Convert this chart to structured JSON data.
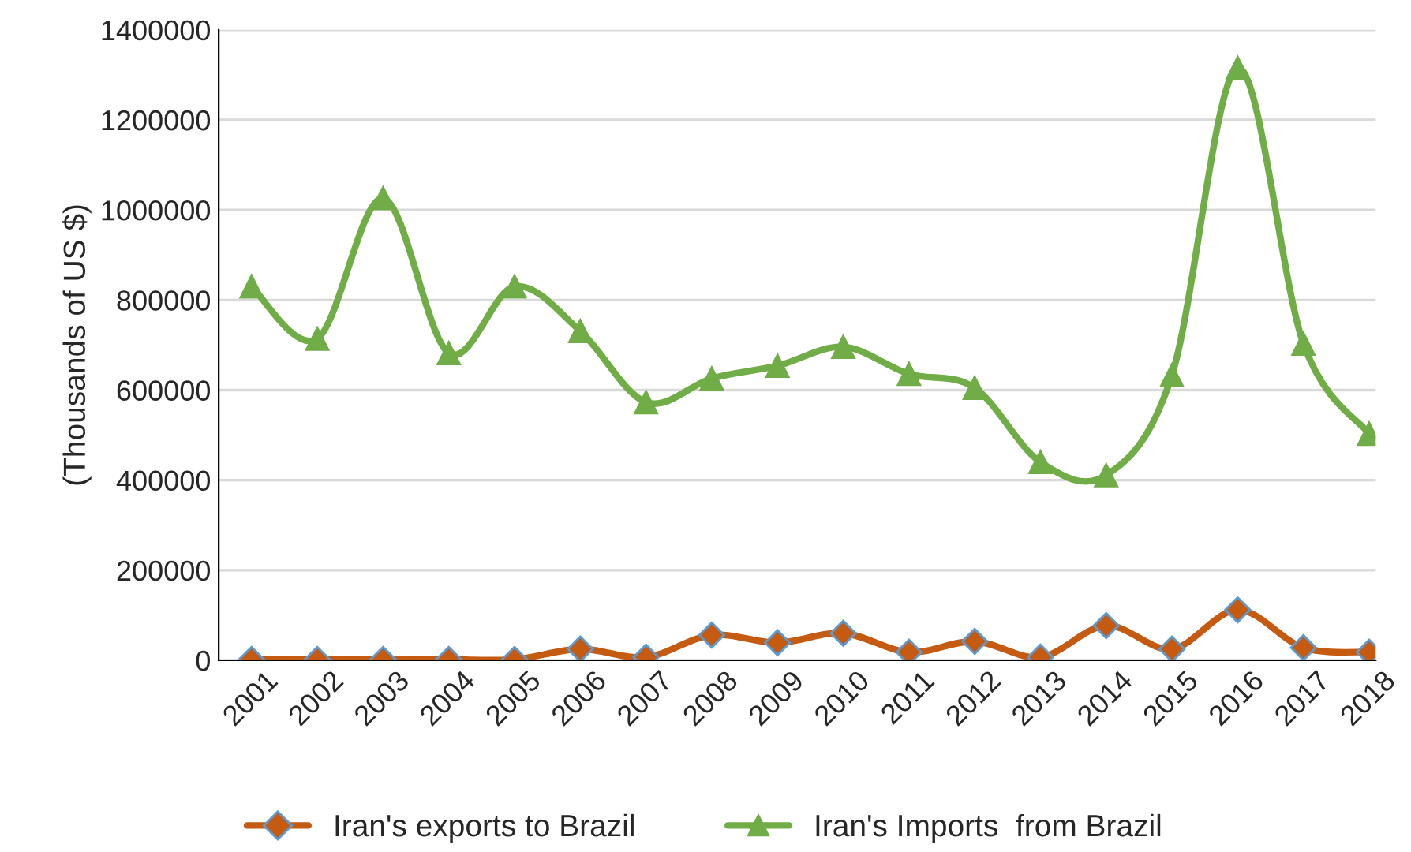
{
  "chart_data": {
    "type": "line",
    "ylabel": "(Thousands of US $)",
    "categories": [
      "2001",
      "2002",
      "2003",
      "2004",
      "2005",
      "2006",
      "2007",
      "2008",
      "2009",
      "2010",
      "2011",
      "2012",
      "2013",
      "2014",
      "2015",
      "2016",
      "2017",
      "2018"
    ],
    "series": [
      {
        "name": "Iran's exports to Brazil",
        "color": "#c55a11",
        "marker": "diamond",
        "values": [
          2000,
          2000,
          2000,
          2000,
          2000,
          25000,
          7000,
          56000,
          39000,
          60000,
          18000,
          42000,
          7000,
          77000,
          25000,
          112000,
          28000,
          18000
        ]
      },
      {
        "name": "Iran's Imports  from Brazil",
        "color": "#70ad47",
        "marker": "triangle",
        "values": [
          830000,
          714000,
          1026000,
          682000,
          830000,
          731000,
          573000,
          626000,
          654000,
          696000,
          636000,
          605000,
          440000,
          411000,
          633000,
          1315000,
          703000,
          503000
        ]
      }
    ],
    "ylim": [
      0,
      1400000
    ],
    "yticks": [
      0,
      200000,
      400000,
      600000,
      800000,
      1000000,
      1200000,
      1400000
    ],
    "grid": "y",
    "legend": "bottom",
    "line_style": "solid"
  }
}
